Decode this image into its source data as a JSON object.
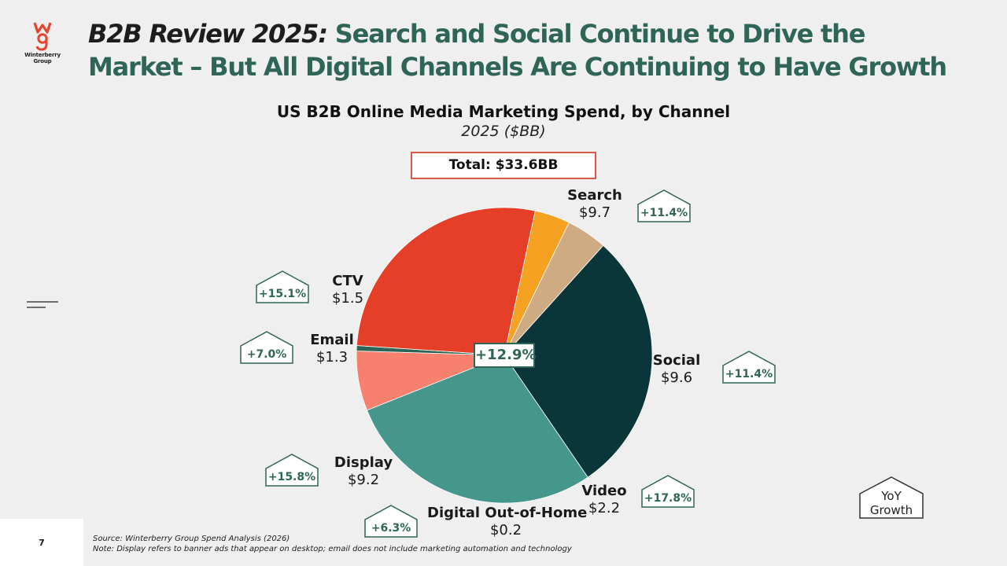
{
  "logo": {
    "mark": "wg",
    "text_line1": "Winterberry",
    "text_line2": "Group"
  },
  "header": {
    "title_emphasis": "B2B Review 2025:",
    "title_rest": " Search and Social Continue to Drive the Market – But All Digital Channels Are Continuing to Have Growth"
  },
  "chart_data": {
    "type": "pie",
    "title": "US B2B Online Media Marketing Spend, by Channel",
    "subtitle": "2025 ($BB)",
    "total_label": "Total: $33.6BB",
    "center_growth": "+12.9%",
    "slices": [
      {
        "name": "Search",
        "label": "$9.7",
        "value": 9.7,
        "growth": "+11.4%",
        "color": "#0a3639"
      },
      {
        "name": "Social",
        "label": "$9.6",
        "value": 9.6,
        "growth": "+11.4%",
        "color": "#45978b"
      },
      {
        "name": "Video",
        "label": "$2.2",
        "value": 2.2,
        "growth": "+17.8%",
        "color": "#f7806f"
      },
      {
        "name": "Digital Out-of-Home",
        "label": "$0.2",
        "value": 0.2,
        "growth": "+6.3%",
        "color": "#2f6557"
      },
      {
        "name": "Display",
        "label": "$9.2",
        "value": 9.2,
        "growth": "+15.8%",
        "color": "#e63f27"
      },
      {
        "name": "Email",
        "label": "$1.3",
        "value": 1.3,
        "growth": "+7.0%",
        "color": "#f5a122"
      },
      {
        "name": "CTV",
        "label": "$1.5",
        "value": 1.5,
        "growth": "+15.1%",
        "color": "#cfab83"
      }
    ],
    "legend_key": [
      "YoY",
      "Growth"
    ]
  },
  "footer": {
    "page_number": "7",
    "source": "Source: Winterberry Group Spend Analysis (2026)",
    "note": "Note: Display refers to banner ads that appear on desktop; email does not include marketing automation and technology"
  },
  "colors": {
    "accent": "#2f6557",
    "total_border": "#d95a48",
    "logo_red": "#e8432d"
  },
  "icons": {
    "menu": "menu-lines-icon"
  }
}
